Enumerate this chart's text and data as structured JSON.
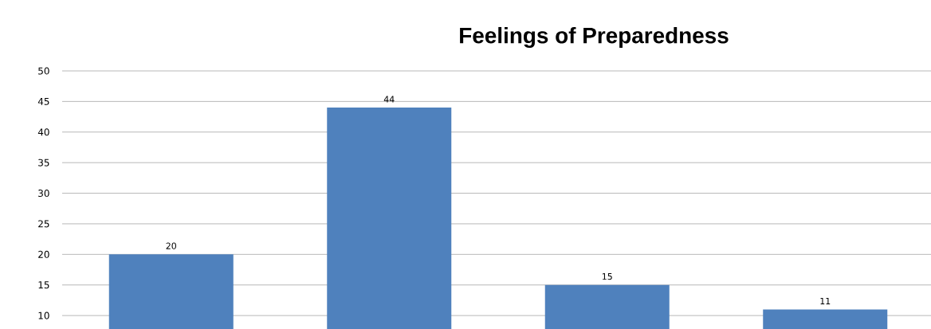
{
  "chart_data": {
    "type": "bar",
    "title": "Feelings of Preparedness",
    "categories": [
      null,
      null,
      null,
      null
    ],
    "values": [
      20,
      44,
      15,
      11
    ],
    "color": "#4f81bd",
    "ylim": [
      7.8,
      50
    ],
    "yticks": [
      10,
      15,
      20,
      25,
      30,
      35,
      40,
      45,
      50
    ],
    "grid": "y",
    "data_labels": true
  }
}
